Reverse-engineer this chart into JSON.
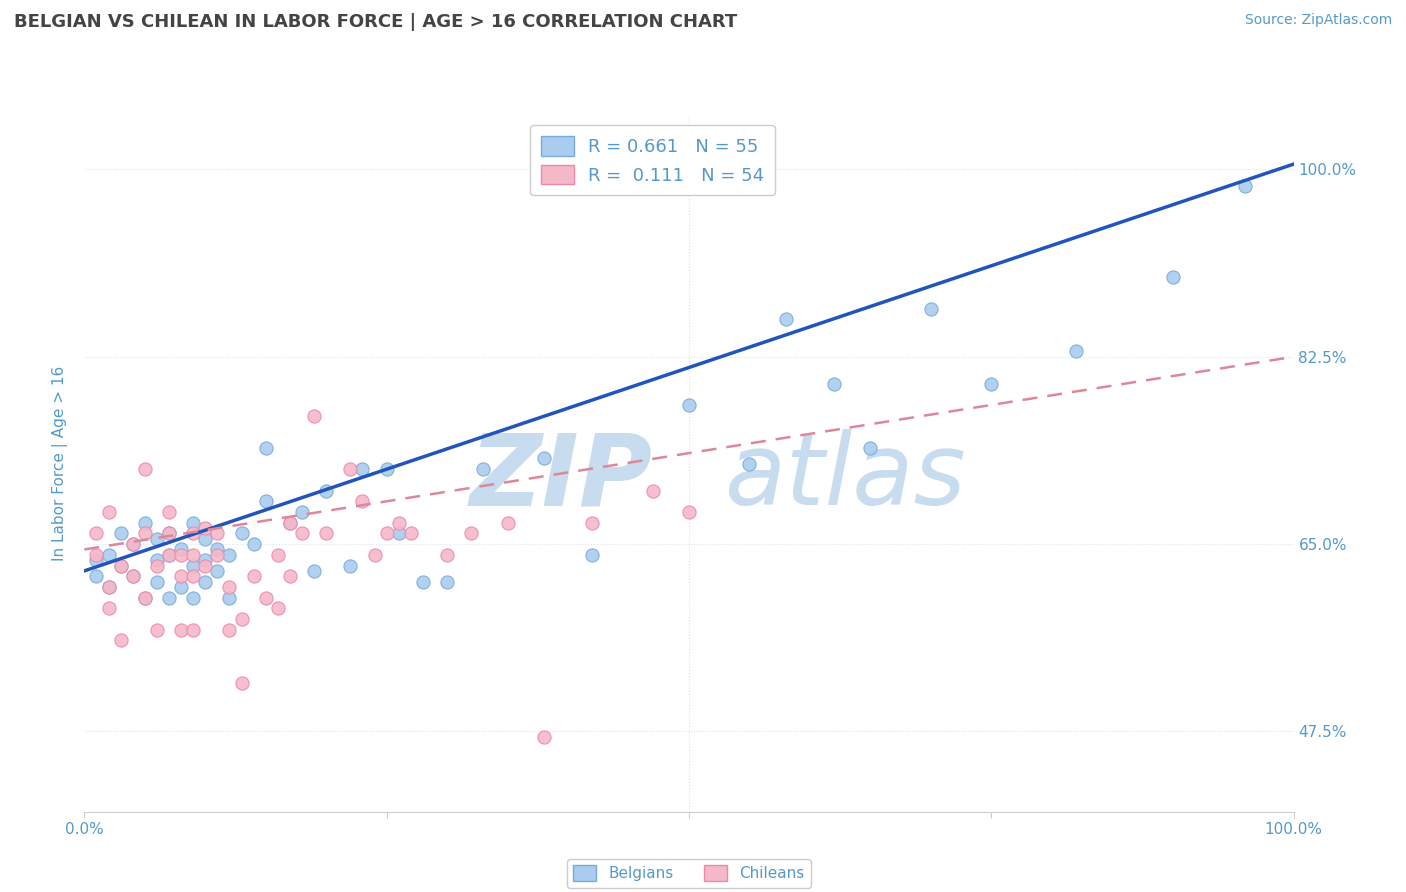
{
  "title": "BELGIAN VS CHILEAN IN LABOR FORCE | AGE > 16 CORRELATION CHART",
  "source_text": "Source: ZipAtlas.com",
  "ylabel": "In Labor Force | Age > 16",
  "xlim": [
    0.0,
    1.0
  ],
  "ylim": [
    0.4,
    1.05
  ],
  "ytick_values": [
    0.475,
    0.65,
    0.825,
    1.0
  ],
  "ytick_labels": [
    "47.5%",
    "65.0%",
    "82.5%",
    "100.0%"
  ],
  "xtick_values": [
    0.0,
    0.25,
    0.5,
    0.75,
    1.0
  ],
  "xtick_labels_sparse": [
    "0.0%",
    "",
    "",
    "",
    "100.0%"
  ],
  "background_color": "#ffffff",
  "grid_color": "#d8e4f0",
  "title_color": "#444444",
  "axis_color": "#5599cc",
  "ylabel_color": "#5599cc",
  "watermark_zip": "ZIP",
  "watermark_atlas": "atlas",
  "watermark_color": "#c8dcf0",
  "r_belgian": 0.661,
  "n_belgian": 55,
  "r_chilean": 0.111,
  "n_chilean": 54,
  "belgian_color": "#aaccee",
  "chilean_color": "#f5b8c8",
  "belgian_edge_color": "#7aaadd",
  "chilean_edge_color": "#ee88aa",
  "trendline_belgian_color": "#2255bb",
  "trendline_chilean_color": "#dd8899",
  "belgians_x": [
    0.01,
    0.01,
    0.02,
    0.02,
    0.03,
    0.03,
    0.04,
    0.04,
    0.05,
    0.05,
    0.06,
    0.06,
    0.06,
    0.07,
    0.07,
    0.07,
    0.08,
    0.08,
    0.09,
    0.09,
    0.09,
    0.1,
    0.1,
    0.1,
    0.11,
    0.11,
    0.12,
    0.12,
    0.13,
    0.14,
    0.15,
    0.15,
    0.17,
    0.18,
    0.19,
    0.2,
    0.22,
    0.23,
    0.25,
    0.26,
    0.28,
    0.3,
    0.33,
    0.38,
    0.42,
    0.5,
    0.55,
    0.58,
    0.62,
    0.65,
    0.7,
    0.75,
    0.82,
    0.9,
    0.96
  ],
  "belgians_y": [
    0.635,
    0.62,
    0.64,
    0.61,
    0.63,
    0.66,
    0.62,
    0.65,
    0.6,
    0.67,
    0.615,
    0.635,
    0.655,
    0.6,
    0.64,
    0.66,
    0.61,
    0.645,
    0.63,
    0.6,
    0.67,
    0.615,
    0.635,
    0.655,
    0.625,
    0.645,
    0.6,
    0.64,
    0.66,
    0.65,
    0.69,
    0.74,
    0.67,
    0.68,
    0.625,
    0.7,
    0.63,
    0.72,
    0.72,
    0.66,
    0.615,
    0.615,
    0.72,
    0.73,
    0.64,
    0.78,
    0.725,
    0.86,
    0.8,
    0.74,
    0.87,
    0.8,
    0.83,
    0.9,
    0.985
  ],
  "chileans_x": [
    0.01,
    0.01,
    0.02,
    0.02,
    0.02,
    0.03,
    0.03,
    0.04,
    0.04,
    0.05,
    0.05,
    0.05,
    0.06,
    0.06,
    0.07,
    0.07,
    0.07,
    0.08,
    0.08,
    0.08,
    0.09,
    0.09,
    0.09,
    0.09,
    0.1,
    0.1,
    0.11,
    0.11,
    0.12,
    0.12,
    0.13,
    0.13,
    0.14,
    0.15,
    0.16,
    0.16,
    0.17,
    0.17,
    0.18,
    0.19,
    0.2,
    0.22,
    0.23,
    0.24,
    0.25,
    0.26,
    0.27,
    0.3,
    0.32,
    0.35,
    0.38,
    0.42,
    0.47,
    0.5
  ],
  "chileans_y": [
    0.66,
    0.64,
    0.68,
    0.59,
    0.61,
    0.63,
    0.56,
    0.65,
    0.62,
    0.66,
    0.6,
    0.72,
    0.57,
    0.63,
    0.64,
    0.66,
    0.68,
    0.57,
    0.62,
    0.64,
    0.62,
    0.64,
    0.66,
    0.57,
    0.63,
    0.665,
    0.64,
    0.66,
    0.57,
    0.61,
    0.52,
    0.58,
    0.62,
    0.6,
    0.59,
    0.64,
    0.62,
    0.67,
    0.66,
    0.77,
    0.66,
    0.72,
    0.69,
    0.64,
    0.66,
    0.67,
    0.66,
    0.64,
    0.66,
    0.67,
    0.47,
    0.67,
    0.7,
    0.68
  ],
  "trendline_belgian_x0": 0.0,
  "trendline_belgian_y0": 0.625,
  "trendline_belgian_x1": 1.0,
  "trendline_belgian_y1": 1.005,
  "trendline_chilean_x0": 0.0,
  "trendline_chilean_y0": 0.645,
  "trendline_chilean_x1": 1.0,
  "trendline_chilean_y1": 0.825
}
